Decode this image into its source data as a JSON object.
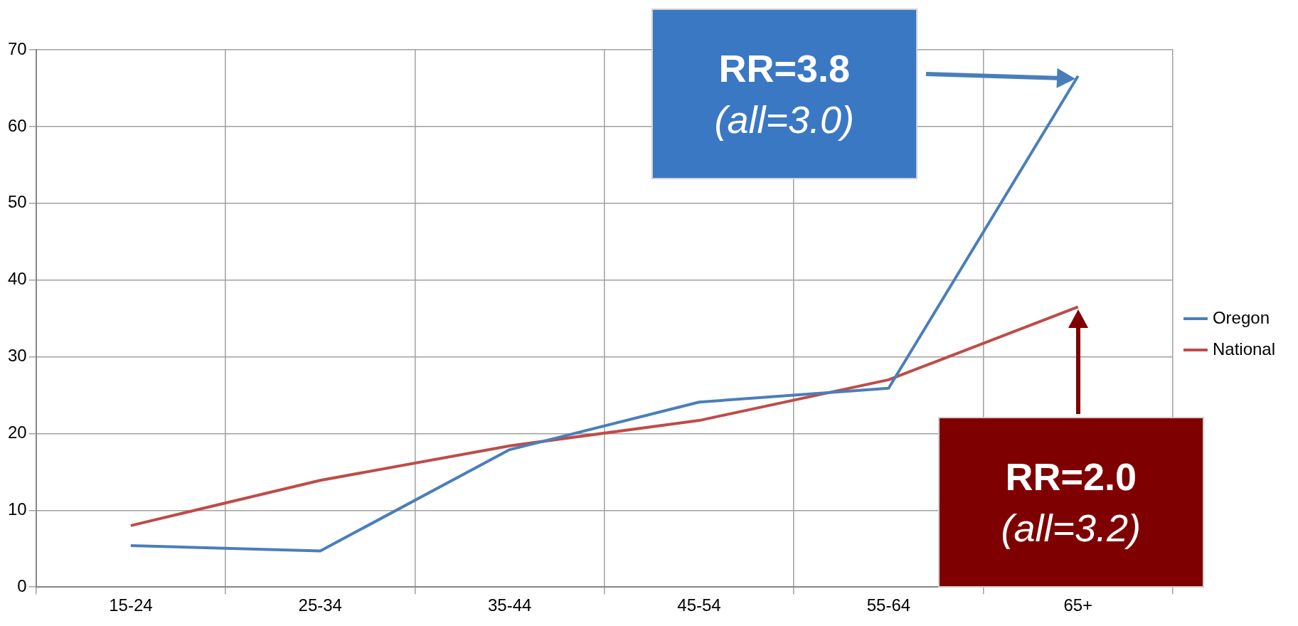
{
  "chart_data": {
    "type": "line",
    "categories": [
      "15-24",
      "25-34",
      "35-44",
      "45-54",
      "55-64",
      "65+"
    ],
    "series": [
      {
        "name": "Oregon",
        "color": "#4a7ebb",
        "values": [
          5.4,
          4.7,
          17.9,
          24.1,
          25.9,
          66.6
        ]
      },
      {
        "name": "National",
        "color": "#be4b48",
        "values": [
          8.0,
          13.9,
          18.4,
          21.7,
          27.0,
          36.5
        ]
      }
    ],
    "ylim": [
      0,
      70
    ],
    "yticks": [
      0,
      10,
      20,
      30,
      40,
      50,
      60,
      70
    ],
    "grid": true,
    "legend": "right",
    "marker": "none",
    "annotations": [
      "RR=3.8\n(all=3.0)",
      "RR=2.0\n(all=3.2)"
    ]
  }
}
